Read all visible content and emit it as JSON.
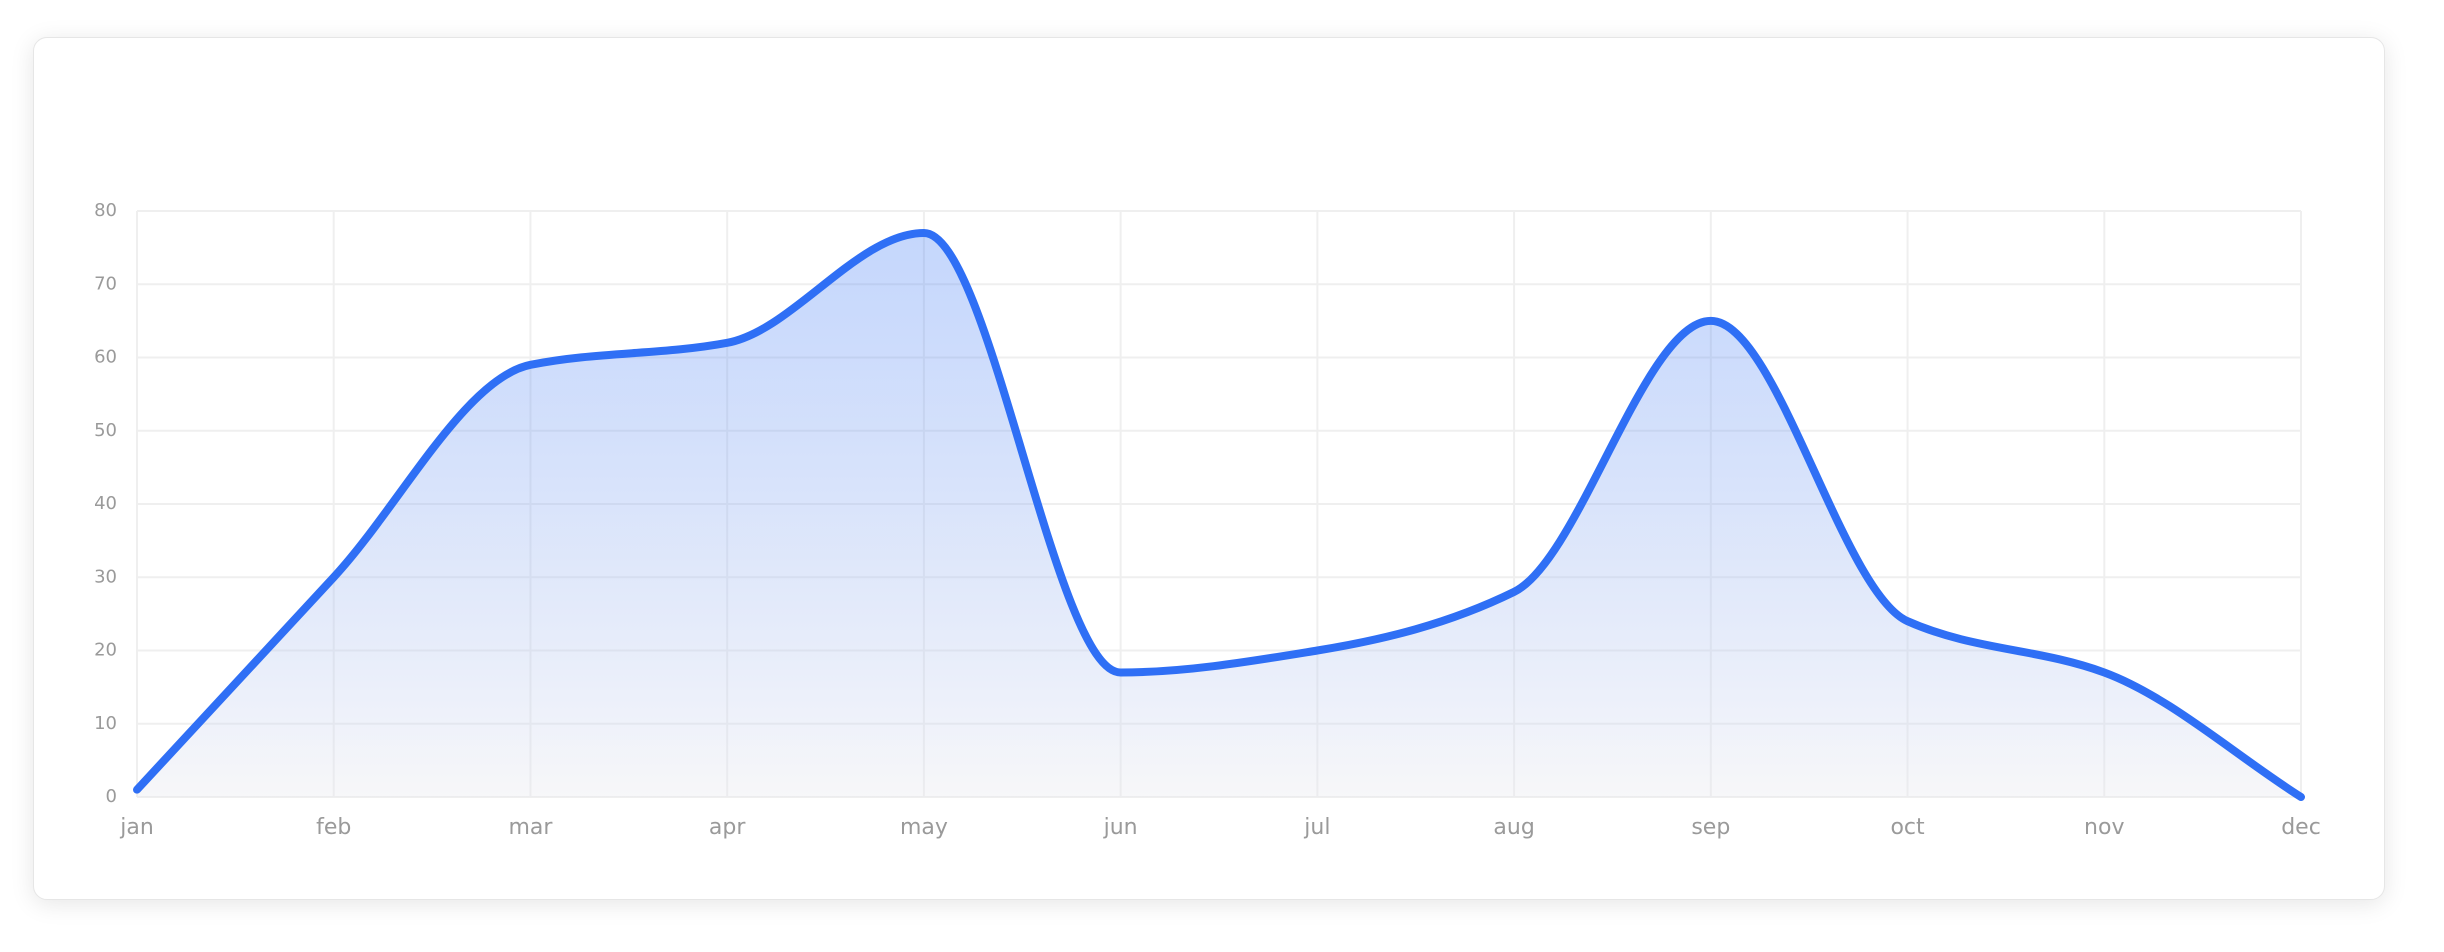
{
  "chart_data": {
    "type": "line",
    "categories": [
      "jan",
      "feb",
      "mar",
      "apr",
      "may",
      "jun",
      "jul",
      "aug",
      "sep",
      "oct",
      "nov",
      "dec"
    ],
    "values": [
      1,
      30,
      59,
      62,
      77,
      17,
      20,
      28,
      65,
      24,
      17,
      0
    ],
    "color": "#2f6ff5",
    "ylim": [
      0,
      80
    ],
    "yticks": [
      0,
      10,
      20,
      30,
      40,
      50,
      60,
      70,
      80
    ],
    "grid": true
  }
}
